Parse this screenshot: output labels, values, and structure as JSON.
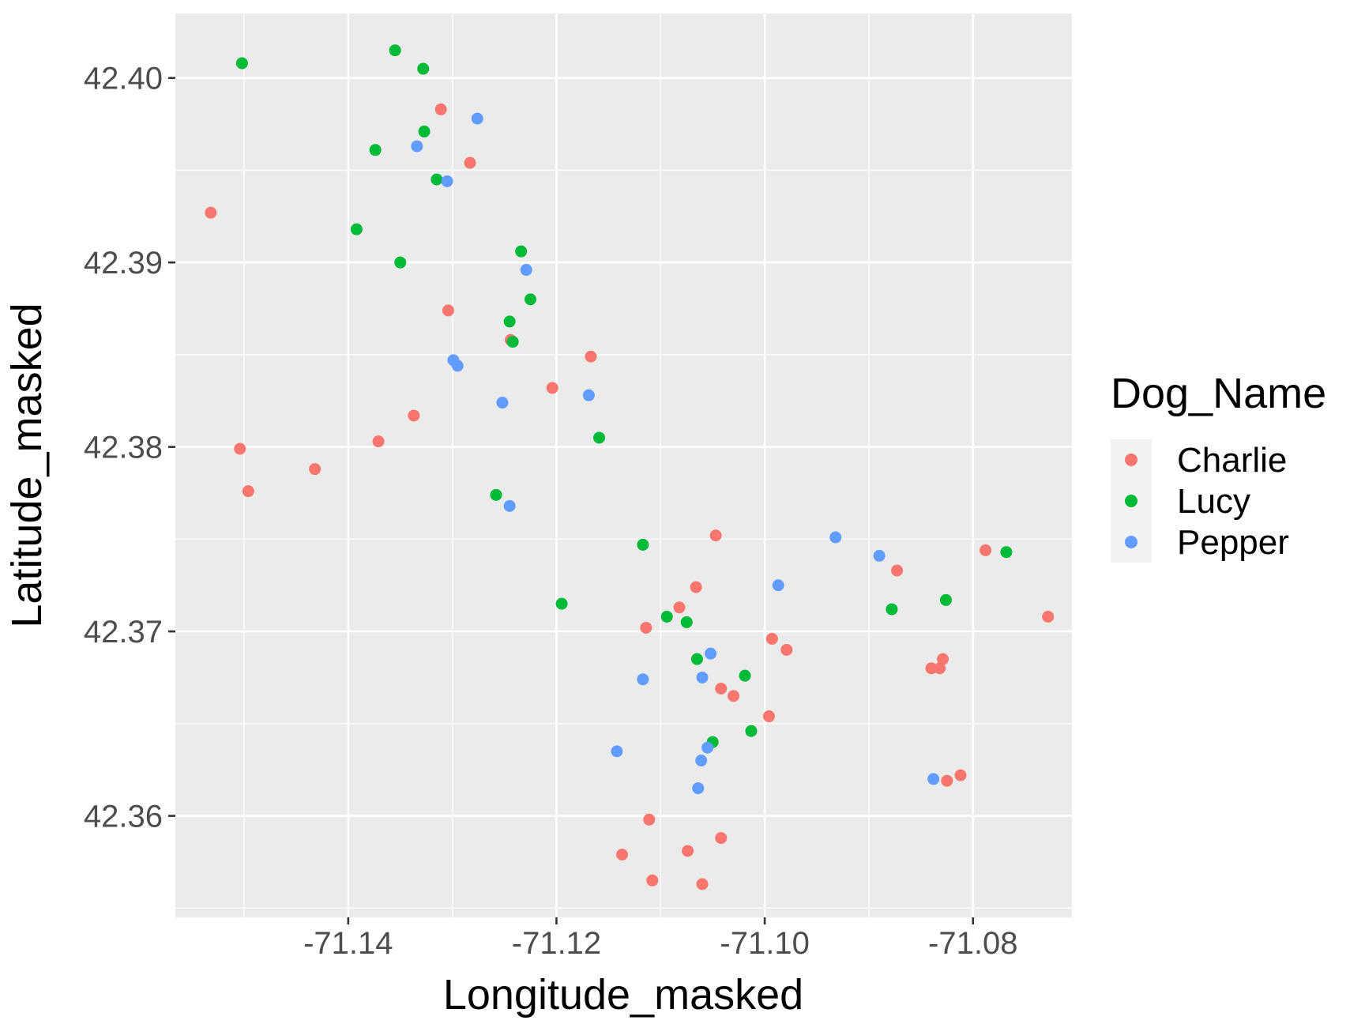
{
  "chart_data": {
    "type": "scatter",
    "xlabel": "Longitude_masked",
    "ylabel": "Latitude_masked",
    "xlim": [
      -71.1566,
      -71.0705
    ],
    "ylim": [
      42.3545,
      42.4035
    ],
    "x_ticks": [
      -71.14,
      -71.12,
      -71.1,
      -71.08
    ],
    "x_tick_labels": [
      "-71.14",
      "-71.12",
      "-71.10",
      "-71.08"
    ],
    "y_ticks": [
      42.36,
      42.37,
      42.38,
      42.39,
      42.4
    ],
    "y_tick_labels": [
      "42.36",
      "42.37",
      "42.38",
      "42.39",
      "42.40"
    ],
    "grid": true,
    "legend": {
      "title": "Dog_Name",
      "position": "right"
    },
    "series": [
      {
        "name": "Charlie",
        "color": "#F8766D",
        "points": [
          [
            -71.1532,
            42.3927
          ],
          [
            -71.1311,
            42.3983
          ],
          [
            -71.1283,
            42.3954
          ],
          [
            -71.1304,
            42.3874
          ],
          [
            -71.1244,
            42.3858
          ],
          [
            -71.1167,
            42.3849
          ],
          [
            -71.1204,
            42.3832
          ],
          [
            -71.1337,
            42.3817
          ],
          [
            -71.1371,
            42.3803
          ],
          [
            -71.1504,
            42.3799
          ],
          [
            -71.1432,
            42.3788
          ],
          [
            -71.1496,
            42.3776
          ],
          [
            -71.1047,
            42.3752
          ],
          [
            -71.1066,
            42.3724
          ],
          [
            -71.1082,
            42.3713
          ],
          [
            -71.1114,
            42.3702
          ],
          [
            -71.0788,
            42.3744
          ],
          [
            -71.0873,
            42.3733
          ],
          [
            -71.0728,
            42.3708
          ],
          [
            -71.0993,
            42.3696
          ],
          [
            -71.0979,
            42.369
          ],
          [
            -71.0829,
            42.3685
          ],
          [
            -71.084,
            42.368
          ],
          [
            -71.0832,
            42.368
          ],
          [
            -71.1042,
            42.3669
          ],
          [
            -71.103,
            42.3665
          ],
          [
            -71.0996,
            42.3654
          ],
          [
            -71.0812,
            42.3622
          ],
          [
            -71.0825,
            42.3619
          ],
          [
            -71.1111,
            42.3598
          ],
          [
            -71.1042,
            42.3588
          ],
          [
            -71.1074,
            42.3581
          ],
          [
            -71.1137,
            42.3579
          ],
          [
            -71.1108,
            42.3565
          ],
          [
            -71.106,
            42.3563
          ]
        ]
      },
      {
        "name": "Lucy",
        "color": "#00BA38",
        "points": [
          [
            -71.1355,
            42.4015
          ],
          [
            -71.1502,
            42.4008
          ],
          [
            -71.1328,
            42.4005
          ],
          [
            -71.1327,
            42.3971
          ],
          [
            -71.1374,
            42.3961
          ],
          [
            -71.1315,
            42.3945
          ],
          [
            -71.1392,
            42.3918
          ],
          [
            -71.1234,
            42.3906
          ],
          [
            -71.135,
            42.39
          ],
          [
            -71.1225,
            42.388
          ],
          [
            -71.1245,
            42.3868
          ],
          [
            -71.1242,
            42.3857
          ],
          [
            -71.1159,
            42.3805
          ],
          [
            -71.1258,
            42.3774
          ],
          [
            -71.1117,
            42.3747
          ],
          [
            -71.0768,
            42.3743
          ],
          [
            -71.0826,
            42.3717
          ],
          [
            -71.1195,
            42.3715
          ],
          [
            -71.0878,
            42.3712
          ],
          [
            -71.1094,
            42.3708
          ],
          [
            -71.1075,
            42.3705
          ],
          [
            -71.1065,
            42.3685
          ],
          [
            -71.1019,
            42.3676
          ],
          [
            -71.1013,
            42.3646
          ],
          [
            -71.105,
            42.364
          ]
        ]
      },
      {
        "name": "Pepper",
        "color": "#619CFF",
        "points": [
          [
            -71.1276,
            42.3978
          ],
          [
            -71.1334,
            42.3963
          ],
          [
            -71.1305,
            42.3944
          ],
          [
            -71.1229,
            42.3896
          ],
          [
            -71.1299,
            42.3847
          ],
          [
            -71.1295,
            42.3844
          ],
          [
            -71.1169,
            42.3828
          ],
          [
            -71.1252,
            42.3824
          ],
          [
            -71.1245,
            42.3768
          ],
          [
            -71.0932,
            42.3751
          ],
          [
            -71.089,
            42.3741
          ],
          [
            -71.0987,
            42.3725
          ],
          [
            -71.1052,
            42.3688
          ],
          [
            -71.106,
            42.3675
          ],
          [
            -71.1117,
            42.3674
          ],
          [
            -71.1055,
            42.3637
          ],
          [
            -71.1142,
            42.3635
          ],
          [
            -71.1061,
            42.363
          ],
          [
            -71.0838,
            42.362
          ],
          [
            -71.1064,
            42.3615
          ]
        ]
      }
    ]
  }
}
